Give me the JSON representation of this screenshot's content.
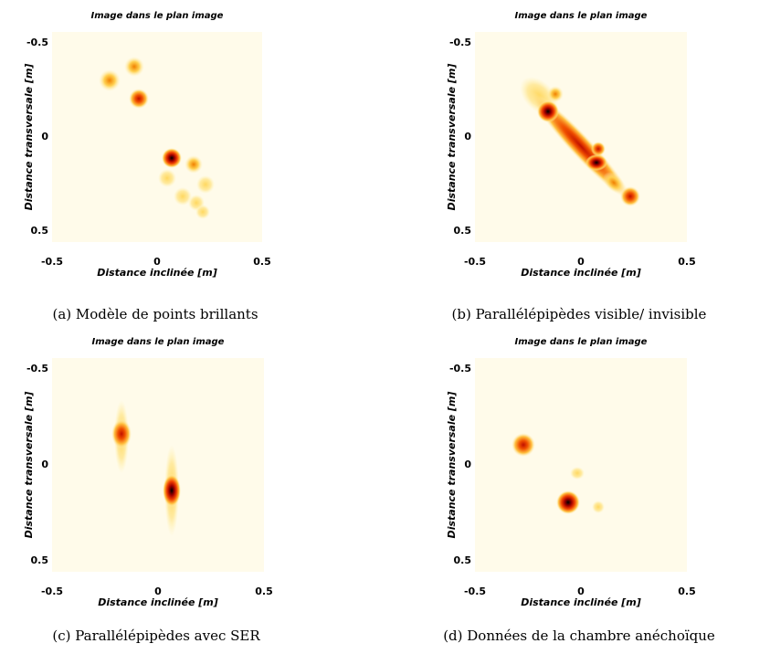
{
  "panels": [
    {
      "title": "Image dans le plan image",
      "x_label": "Distance inclinée [m]",
      "y_label": "Distance transversale [m]",
      "x_ticks": [
        "-0.5",
        "0",
        "0.5"
      ],
      "y_ticks": [
        "-0.5",
        "0",
        "0.5"
      ],
      "caption": "(a) Modèle de points brillants"
    },
    {
      "title": "Image dans le plan image",
      "x_label": "Distance inclinée  [m]",
      "y_label": "Distance transversale [m]",
      "x_ticks": [
        "-0.5",
        "0",
        "0.5"
      ],
      "y_ticks": [
        "-0.5",
        "0",
        "0.5"
      ],
      "caption": "(b) Parallélépipèdes visible/ invisible"
    },
    {
      "title": "Image dans le plan image",
      "x_label": "Distance inclinée [m]",
      "y_label": "Distance transversale [m]",
      "x_ticks": [
        "-0.5",
        "0",
        "0.5"
      ],
      "y_ticks": [
        "-0.5",
        "0",
        "0.5"
      ],
      "caption": "(c) Parallélépipèdes avec SER"
    },
    {
      "title": "Image dans le plan image",
      "x_label": "Distance inclinée [m]",
      "y_label": "Distance transversale [m]",
      "x_ticks": [
        "-0.5",
        "0",
        "0.5"
      ],
      "y_ticks": [
        "-0.5",
        "0",
        "0.5"
      ],
      "caption": "(d) Données de la chambre anéchoïque"
    }
  ]
}
